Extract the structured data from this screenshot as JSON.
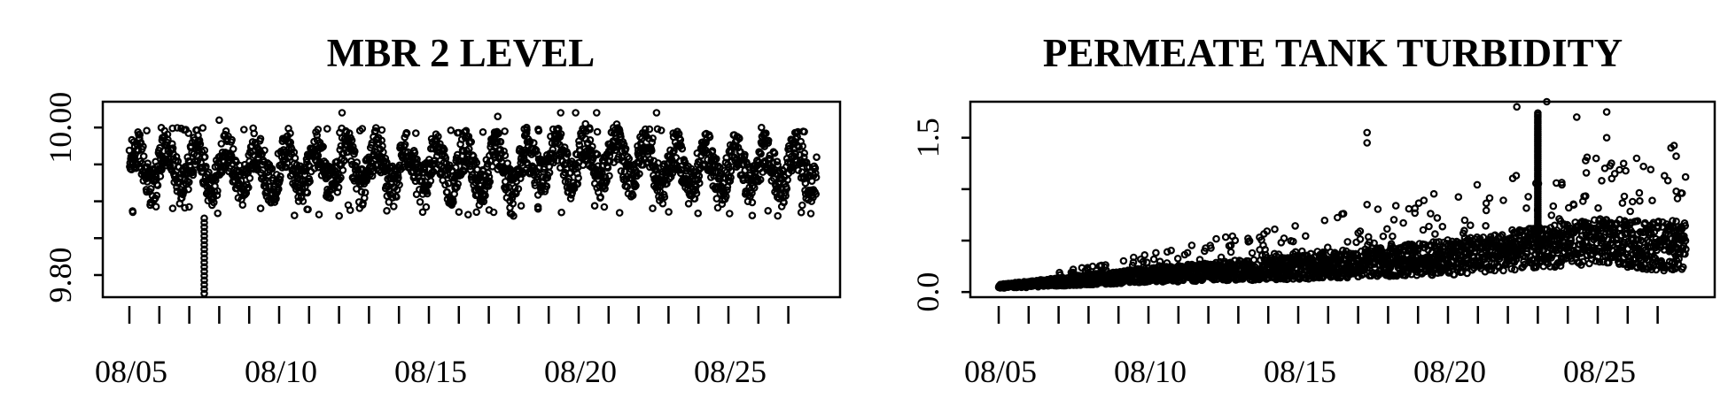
{
  "chart_data": [
    {
      "type": "scatter",
      "title": "MBR 2 LEVEL",
      "xlabel": "",
      "ylabel": "",
      "x_tick_labels": [
        "08/05",
        "08/10",
        "08/15",
        "08/20",
        "08/25"
      ],
      "x_range": [
        "08/05",
        "08/27"
      ],
      "y_tick_labels": [
        "9.80",
        "10.00"
      ],
      "y_ticks": [
        9.8,
        9.85,
        9.9,
        9.95,
        10.0
      ],
      "ylim": [
        9.77,
        10.035
      ],
      "grid": false,
      "legend": "none",
      "description_points": {
        "typical_band": [
          9.9,
          9.99
        ],
        "typical_extremes": [
          9.88,
          10.0
        ],
        "max": 10.02,
        "min_dip_day": "08/07",
        "min": 9.775
      }
    },
    {
      "type": "scatter",
      "title": "PERMEATE TANK TURBIDITY",
      "xlabel": "",
      "ylabel": "",
      "x_tick_labels": [
        "08/05",
        "08/10",
        "08/15",
        "08/20",
        "08/25"
      ],
      "x_range": [
        "08/05",
        "08/27"
      ],
      "y_tick_labels": [
        "0.0",
        "1.5"
      ],
      "y_ticks": [
        0.0,
        0.5,
        1.0,
        1.5
      ],
      "ylim": [
        -0.05,
        1.85
      ],
      "grid": false,
      "legend": "none",
      "trend": [
        {
          "x": "08/05",
          "y": 0.05
        },
        {
          "x": "08/10",
          "y": 0.15
        },
        {
          "x": "08/15",
          "y": 0.22
        },
        {
          "x": "08/20",
          "y": 0.3
        },
        {
          "x": "08/25",
          "y": 0.45
        },
        {
          "x": "08/27",
          "y": 0.4
        }
      ],
      "outliers": [
        {
          "x": "08/17",
          "y": 1.55
        },
        {
          "x": "08/17",
          "y": 1.45
        },
        {
          "x": "08/17",
          "y": 0.85
        },
        {
          "x": "08/22",
          "y": 1.8
        },
        {
          "x": "08/23",
          "y": 1.85
        },
        {
          "x": "08/24",
          "y": 1.7
        },
        {
          "x": "08/25",
          "y": 1.75
        },
        {
          "x": "08/25",
          "y": 1.5
        },
        {
          "x": "08/26",
          "y": 1.3
        }
      ]
    }
  ]
}
